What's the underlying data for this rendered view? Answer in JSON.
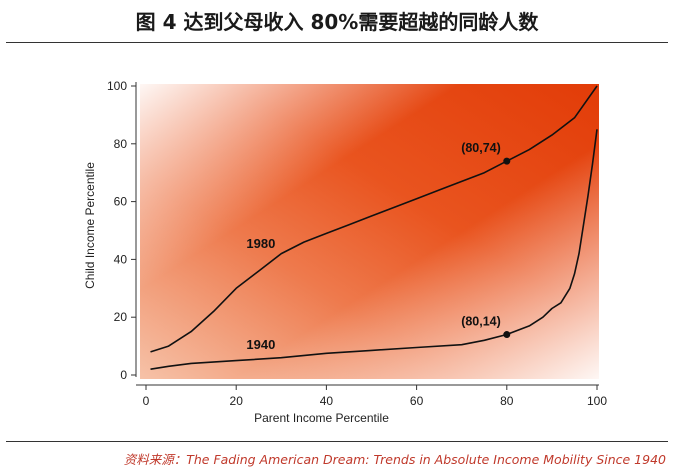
{
  "title": "图 4  达到父母收入 80%需要超越的同龄人数",
  "source": "资料来源：The Fading American Dream: Trends in Absolute Income Mobility Since 1940",
  "chart_data": {
    "type": "line",
    "xlabel": "Parent Income Percentile",
    "ylabel": "Child Income Percentile",
    "xlim": [
      0,
      100
    ],
    "ylim": [
      0,
      100
    ],
    "xticks": [
      0,
      20,
      40,
      60,
      80,
      100
    ],
    "yticks": [
      0,
      20,
      40,
      60,
      80,
      100
    ],
    "series": [
      {
        "name": "1980",
        "x": [
          1,
          5,
          10,
          15,
          20,
          25,
          30,
          35,
          40,
          45,
          50,
          55,
          60,
          65,
          70,
          75,
          80,
          85,
          90,
          95,
          100
        ],
        "values": [
          8,
          10,
          15,
          22,
          30,
          36,
          42,
          46,
          49,
          52,
          55,
          58,
          61,
          64,
          67,
          70,
          74,
          78,
          83,
          89,
          100
        ]
      },
      {
        "name": "1940",
        "x": [
          1,
          5,
          10,
          20,
          30,
          40,
          50,
          60,
          70,
          75,
          80,
          85,
          88,
          90,
          92,
          94,
          95,
          96,
          97,
          98,
          99,
          100
        ],
        "values": [
          2,
          3,
          4,
          5,
          6,
          7.5,
          8.5,
          9.5,
          10.5,
          12,
          14,
          17,
          20,
          23,
          25,
          30,
          35,
          42,
          52,
          62,
          73,
          85
        ]
      }
    ],
    "annotations": [
      {
        "label": "(80,74)",
        "x": 80,
        "y": 74
      },
      {
        "label": "(80,14)",
        "x": 80,
        "y": 14
      }
    ],
    "series_labels": [
      {
        "text": "1980",
        "x": 30,
        "y": 44
      },
      {
        "text": "1940",
        "x": 30,
        "y": 9
      }
    ]
  }
}
